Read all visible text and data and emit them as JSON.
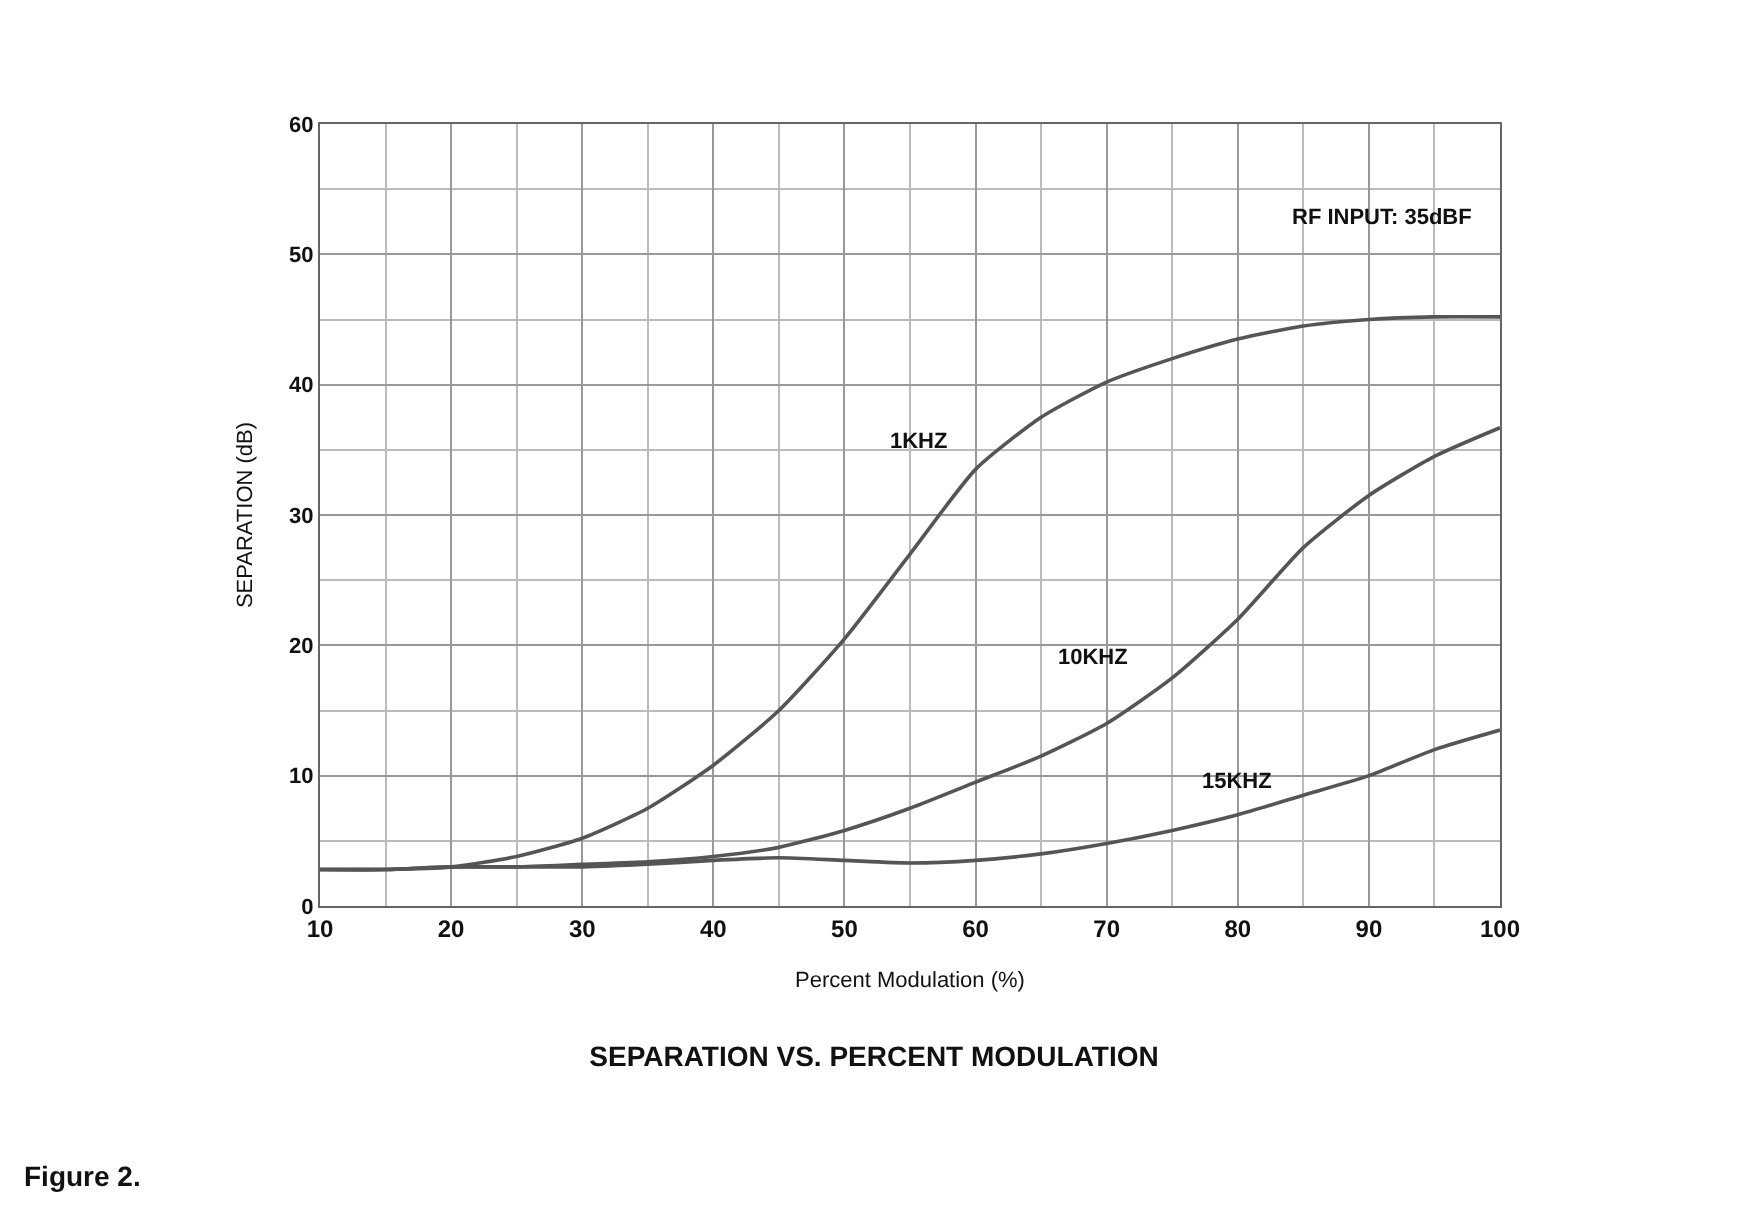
{
  "chart_data": {
    "type": "line",
    "title": "SEPARATION VS. PERCENT MODULATION",
    "xlabel": "Percent Modulation (%)",
    "ylabel": "SEPARATION (dB)",
    "x": [
      10,
      15,
      20,
      25,
      30,
      35,
      40,
      45,
      50,
      55,
      60,
      65,
      70,
      75,
      80,
      85,
      90,
      95,
      100
    ],
    "series": [
      {
        "name": "1KHZ",
        "color": "#555555",
        "values": [
          2.8,
          2.8,
          3.0,
          3.8,
          5.2,
          7.5,
          10.8,
          15,
          20.5,
          27,
          33.5,
          37.5,
          40.2,
          42,
          43.5,
          44.5,
          45,
          45.2,
          45.2
        ]
      },
      {
        "name": "10KHZ",
        "color": "#555555",
        "values": [
          2.8,
          2.8,
          3.0,
          3.0,
          3.2,
          3.4,
          3.8,
          4.5,
          5.8,
          7.5,
          9.5,
          11.5,
          14,
          17.5,
          22,
          27.5,
          31.5,
          34.5,
          36.7
        ]
      },
      {
        "name": "15KHZ",
        "color": "#555555",
        "values": [
          2.8,
          2.8,
          3.0,
          3.0,
          3.0,
          3.2,
          3.5,
          3.7,
          3.5,
          3.3,
          3.5,
          4.0,
          4.8,
          5.8,
          7,
          8.5,
          10,
          12,
          13.5
        ]
      }
    ],
    "annotations": [
      "RF INPUT: 35dBF",
      "Figure 2."
    ],
    "xlim": [
      10,
      100
    ],
    "ylim": [
      0,
      60
    ],
    "xticks": [
      10,
      20,
      30,
      40,
      50,
      60,
      70,
      80,
      90,
      100
    ],
    "yticks": [
      0,
      10,
      20,
      30,
      40,
      50,
      60
    ],
    "grid": true,
    "legend": false,
    "marker": "none",
    "line_style": "solid"
  }
}
